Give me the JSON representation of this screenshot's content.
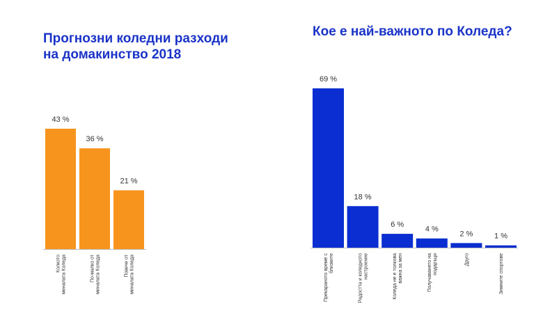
{
  "colors": {
    "left_bar": "#f7941d",
    "right_bar": "#0a2ed1",
    "title": "#1a33c7"
  },
  "chart_data": [
    {
      "type": "bar",
      "title": "Прогнозни коледни разходи на домакинство 2018",
      "title_lines": [
        "Прогнозни коледни разходи",
        "на домакинство 2018"
      ],
      "categories": [
        [
          "Колкото",
          "миналата Коледа"
        ],
        [
          "По-малко от",
          "миналата Коледа"
        ],
        [
          "Повече от",
          "миналата Коледа"
        ]
      ],
      "values": [
        43,
        36,
        21
      ],
      "value_labels": [
        "43 %",
        "36 %",
        "21 %"
      ],
      "ylim": [
        0,
        43
      ],
      "color": "#f7941d",
      "grid": false
    },
    {
      "type": "bar",
      "title": "Кое е най-важното по Коледа?",
      "title_lines": [
        "Кое е най-важното по Коледа?"
      ],
      "categories": [
        [
          "Прекараното време с",
          "близките"
        ],
        [
          "Радостта и коледното",
          "настроение"
        ],
        [
          "Коледа не е толкова",
          "важна за мен"
        ],
        [
          "Получаването на",
          "подаръци"
        ],
        [
          "Друго"
        ],
        [
          "Зимните спортове"
        ]
      ],
      "values": [
        69,
        18,
        6,
        4,
        2,
        1
      ],
      "value_labels": [
        "69 %",
        "18 %",
        "6 %",
        "4 %",
        "2 %",
        "1 %"
      ],
      "ylim": [
        0,
        69
      ],
      "color": "#0a2ed1",
      "grid": false
    }
  ]
}
